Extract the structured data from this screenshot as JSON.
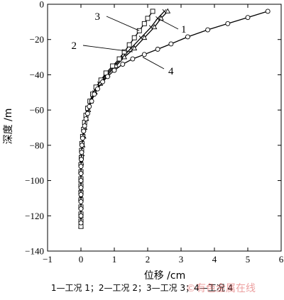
{
  "chart_data": {
    "type": "line",
    "title": "",
    "xlabel": "位移 /cm",
    "ylabel": "深度 /m",
    "xlim": [
      -1,
      6
    ],
    "ylim": [
      -140,
      0
    ],
    "xticks": [
      -1,
      0,
      1,
      2,
      3,
      4,
      5,
      6
    ],
    "yticks": [
      0,
      -20,
      -40,
      -60,
      -80,
      -100,
      -120,
      -140
    ],
    "grid": false,
    "series": [
      {
        "name": "1",
        "marker": "x",
        "points": [
          [
            2.5,
            -4
          ],
          [
            2.3,
            -8
          ],
          [
            2.1,
            -13
          ],
          [
            1.8,
            -19
          ],
          [
            1.5,
            -25
          ],
          [
            1.25,
            -30
          ],
          [
            1.0,
            -35
          ],
          [
            0.75,
            -40
          ],
          [
            0.55,
            -45
          ],
          [
            0.4,
            -50
          ],
          [
            0.3,
            -55
          ],
          [
            0.22,
            -60
          ],
          [
            0.16,
            -65
          ],
          [
            0.12,
            -70
          ],
          [
            0.08,
            -75
          ],
          [
            0.05,
            -80
          ],
          [
            0.03,
            -85
          ],
          [
            0.01,
            -90
          ],
          [
            0,
            -95
          ],
          [
            0,
            -100
          ],
          [
            0,
            -105
          ],
          [
            0,
            -110
          ],
          [
            0,
            -115
          ],
          [
            0,
            -120
          ],
          [
            0,
            -126
          ]
        ]
      },
      {
        "name": "2",
        "marker": "triangle",
        "points": [
          [
            2.6,
            -4
          ],
          [
            2.4,
            -8
          ],
          [
            2.2,
            -13
          ],
          [
            1.9,
            -19
          ],
          [
            1.6,
            -25
          ],
          [
            1.3,
            -30
          ],
          [
            1.05,
            -35
          ],
          [
            0.8,
            -40
          ],
          [
            0.58,
            -45
          ],
          [
            0.42,
            -50
          ],
          [
            0.3,
            -55
          ],
          [
            0.22,
            -60
          ],
          [
            0.16,
            -65
          ],
          [
            0.11,
            -70
          ],
          [
            0.08,
            -75
          ],
          [
            0.05,
            -80
          ],
          [
            0.03,
            -85
          ],
          [
            0.01,
            -90
          ],
          [
            0,
            -95
          ],
          [
            0,
            -100
          ],
          [
            0,
            -105
          ],
          [
            0,
            -110
          ],
          [
            0,
            -115
          ],
          [
            0,
            -120
          ],
          [
            0,
            -126
          ]
        ]
      },
      {
        "name": "3",
        "marker": "square",
        "points": [
          [
            2.15,
            -4
          ],
          [
            2.0,
            -8
          ],
          [
            1.9,
            -11
          ],
          [
            1.75,
            -15
          ],
          [
            1.6,
            -19
          ],
          [
            1.45,
            -23
          ],
          [
            1.3,
            -27
          ],
          [
            1.15,
            -31
          ],
          [
            0.95,
            -35
          ],
          [
            0.75,
            -39
          ],
          [
            0.6,
            -43
          ],
          [
            0.45,
            -47
          ],
          [
            0.35,
            -51
          ],
          [
            0.27,
            -55
          ],
          [
            0.2,
            -59
          ],
          [
            0.15,
            -63
          ],
          [
            0.11,
            -67
          ],
          [
            0.08,
            -71
          ],
          [
            0.05,
            -75
          ],
          [
            0.03,
            -79
          ],
          [
            0.02,
            -83
          ],
          [
            0.01,
            -87
          ],
          [
            0,
            -91
          ],
          [
            0,
            -95
          ],
          [
            0,
            -99
          ],
          [
            0,
            -103
          ],
          [
            0,
            -107
          ],
          [
            0,
            -111
          ],
          [
            0,
            -115
          ],
          [
            0,
            -119
          ],
          [
            0,
            -123
          ],
          [
            0,
            -126
          ]
        ]
      },
      {
        "name": "4",
        "marker": "circle",
        "points": [
          [
            5.6,
            -4
          ],
          [
            5.0,
            -7.5
          ],
          [
            4.4,
            -11
          ],
          [
            3.8,
            -14.5
          ],
          [
            3.2,
            -18.5
          ],
          [
            2.7,
            -22.5
          ],
          [
            2.3,
            -25.5
          ],
          [
            1.9,
            -28.5
          ],
          [
            1.55,
            -31
          ],
          [
            1.25,
            -34
          ],
          [
            1.0,
            -37.5
          ],
          [
            0.8,
            -41
          ],
          [
            0.65,
            -44
          ],
          [
            0.5,
            -48
          ],
          [
            0.4,
            -51
          ],
          [
            0.32,
            -55
          ],
          [
            0.25,
            -58
          ],
          [
            0.2,
            -62
          ],
          [
            0.15,
            -65
          ],
          [
            0.11,
            -69
          ],
          [
            0.08,
            -72
          ],
          [
            0.05,
            -76
          ],
          [
            0.03,
            -80
          ],
          [
            0.02,
            -84
          ],
          [
            0.01,
            -88
          ],
          [
            0,
            -92
          ],
          [
            0,
            -96
          ],
          [
            0,
            -100
          ],
          [
            0,
            -104
          ],
          [
            0,
            -108
          ],
          [
            0,
            -112
          ],
          [
            0,
            -116
          ],
          [
            0,
            -120
          ],
          [
            0,
            -124
          ]
        ]
      }
    ],
    "annotations": [
      {
        "text": "1",
        "target": [
          2.3,
          -8
        ]
      },
      {
        "text": "2",
        "target": [
          1.55,
          -27
        ]
      },
      {
        "text": "3",
        "target": [
          1.75,
          -15
        ]
      },
      {
        "text": "4",
        "target": [
          1.85,
          -30
        ]
      }
    ],
    "caption": "1—工况 1；2—工况 2；3—工况 3；4—工况 4"
  },
  "watermark": "©有色金属在线"
}
